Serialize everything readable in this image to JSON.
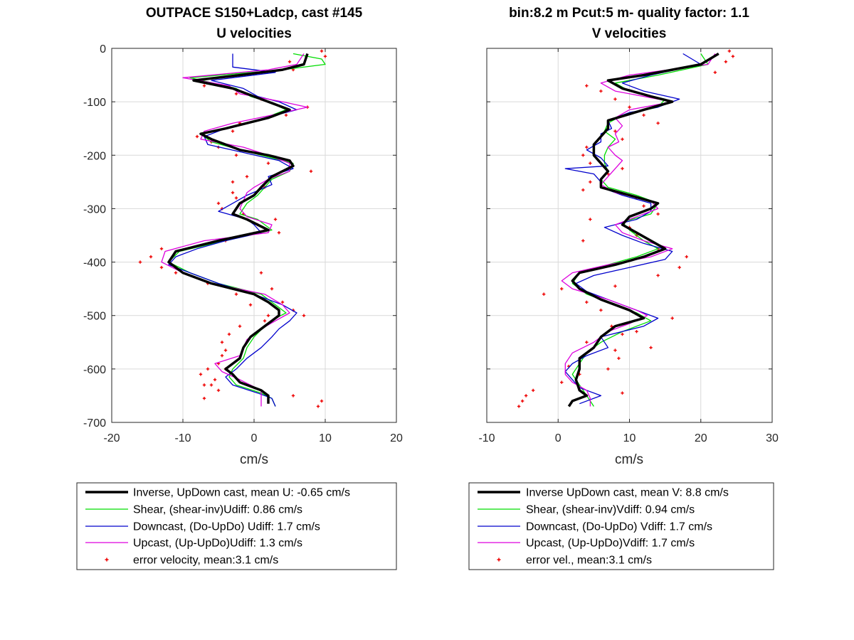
{
  "panels": [
    {
      "id": "u",
      "title_line1": "OUTPACE S150+Ladcp, cast #145",
      "title_line2": "U velocities",
      "xlabel": "cm/s",
      "legend": [
        "Inverse, UpDown cast, mean U:  -0.65 cm/s",
        "Shear, (shear-inv)Udiff:  0.86 cm/s",
        "Downcast, (Do-UpDo) Udiff:  1.7 cm/s",
        "Upcast, (Up-UpDo)Udiff:  1.3 cm/s",
        "error velocity, mean:3.1 cm/s"
      ]
    },
    {
      "id": "v",
      "title_line1": "bin:8.2 m  Pcut:5 m- quality factor:  1.1",
      "title_line2": "V velocities",
      "xlabel": "cm/s",
      "legend": [
        "Inverse UpDown cast, mean V:  8.8 cm/s",
        "Shear, (shear-inv)Vdiff:  0.94 cm/s",
        "Downcast, (Do-UpDo) Vdiff:  1.7 cm/s",
        "Upcast, (Up-UpDo)Vdiff:  1.7 cm/s",
        "error vel., mean:3.1 cm/s"
      ]
    }
  ],
  "colors": {
    "inverse": "#000000",
    "shear": "#00dd00",
    "downcast": "#0000cc",
    "upcast": "#dd00dd",
    "error": "#ee0000",
    "grid": "#d9d9d9"
  },
  "chart_data": [
    {
      "type": "line",
      "x_axis": "velocity",
      "y_axis": "depth",
      "xlim": [
        -20,
        20
      ],
      "xticks": [
        -20,
        -10,
        0,
        10,
        20
      ],
      "ylim": [
        -700,
        0
      ],
      "yticks": [
        0,
        -100,
        -200,
        -300,
        -400,
        -500,
        -600,
        -700
      ],
      "grid": true,
      "legend_position": "below",
      "series": [
        {
          "key": "inverse",
          "depth": [
            -10,
            -30,
            -40,
            -50,
            -60,
            -75,
            -85,
            -100,
            -115,
            -130,
            -150,
            -160,
            -170,
            -190,
            -200,
            -210,
            -220,
            -240,
            -260,
            -275,
            -290,
            -310,
            -320,
            -340,
            -360,
            -380,
            -400,
            -420,
            -440,
            -460,
            -475,
            -490,
            -500,
            -520,
            -540,
            -560,
            -580,
            -600,
            -610,
            -625,
            -640,
            -650,
            -665
          ],
          "values": [
            7.5,
            7.0,
            4.0,
            -2.0,
            -8.5,
            -3.0,
            -1.0,
            2.0,
            5.0,
            2.0,
            -4.0,
            -7.5,
            -6.0,
            -2.0,
            2.0,
            5.0,
            5.5,
            2.5,
            1.0,
            0.0,
            -2.0,
            -3.0,
            -1.0,
            2.0,
            -5.0,
            -11.0,
            -12.0,
            -10.0,
            -6.0,
            0.0,
            2.0,
            3.5,
            3.5,
            1.5,
            -0.5,
            -1.5,
            -2.0,
            -4.0,
            -3.0,
            -2.0,
            1.0,
            2.0,
            2.0
          ]
        },
        {
          "key": "shear",
          "depth": [
            -10,
            -20,
            -30,
            -40,
            -55,
            -75,
            -90,
            -100,
            -115,
            -130,
            -150,
            -160,
            -175,
            -190,
            -205,
            -215,
            -230,
            -245,
            -260,
            -275,
            -290,
            -310,
            -320,
            -340,
            -360,
            -380,
            -400,
            -420,
            -440,
            -460,
            -480,
            -495,
            -505,
            -520,
            -540,
            -560,
            -580,
            -600,
            -615,
            -630,
            -645,
            -655,
            -670
          ],
          "values": [
            5.5,
            9.5,
            10.0,
            4.0,
            -9.0,
            -2.5,
            -0.5,
            2.0,
            4.5,
            1.5,
            -4.0,
            -7.5,
            -6.0,
            -2.0,
            2.5,
            5.5,
            5.0,
            2.5,
            1.5,
            0.5,
            -1.0,
            -2.0,
            0.5,
            2.5,
            -4.0,
            -10.5,
            -12.0,
            -9.0,
            -5.0,
            1.0,
            3.0,
            4.5,
            3.0,
            1.5,
            0.0,
            -1.0,
            -1.5,
            -3.0,
            -3.5,
            -2.5,
            1.0,
            2.5,
            3.0
          ]
        },
        {
          "key": "downcast",
          "depth": [
            -10,
            -35,
            -45,
            -60,
            -75,
            -90,
            -100,
            -115,
            -130,
            -150,
            -165,
            -180,
            -195,
            -210,
            -225,
            -240,
            -255,
            -275,
            -290,
            -305,
            -320,
            -330,
            -345,
            -360,
            -375,
            -390,
            -405,
            -420,
            -440,
            -460,
            -480,
            -495,
            -510,
            -525,
            -540,
            -560,
            -580,
            -600,
            -615,
            -630,
            -645,
            -655,
            -670
          ],
          "values": [
            -3.0,
            -3.0,
            3.0,
            -6.0,
            -1.5,
            0.5,
            3.5,
            6.0,
            1.5,
            -4.0,
            -7.0,
            -6.5,
            -1.5,
            3.5,
            5.5,
            2.0,
            2.5,
            -1.0,
            -3.0,
            -5.0,
            -1.0,
            0.0,
            1.0,
            -4.0,
            -8.0,
            -11.0,
            -12.0,
            -9.0,
            -5.0,
            0.0,
            4.0,
            6.0,
            5.0,
            3.5,
            2.5,
            1.0,
            -1.0,
            -2.5,
            -4.0,
            -3.0,
            0.5,
            2.5,
            3.0
          ]
        },
        {
          "key": "upcast",
          "depth": [
            -10,
            -30,
            -40,
            -55,
            -70,
            -85,
            -100,
            -110,
            -125,
            -140,
            -155,
            -170,
            -185,
            -200,
            -215,
            -230,
            -245,
            -260,
            -270,
            -285,
            -300,
            -315,
            -330,
            -345,
            -360,
            -380,
            -400,
            -420,
            -440,
            -460,
            -480,
            -495,
            -510,
            -525,
            -545,
            -560,
            -575,
            -590,
            -605,
            -620,
            -640,
            -655,
            -670
          ],
          "values": [
            7.0,
            6.0,
            2.0,
            -10.0,
            -3.5,
            -2.0,
            4.0,
            7.5,
            2.5,
            -3.0,
            -7.0,
            -7.5,
            -1.5,
            2.0,
            5.0,
            5.0,
            2.0,
            0.0,
            -1.0,
            -1.5,
            -2.0,
            -1.0,
            2.5,
            2.0,
            -7.0,
            -12.5,
            -13.0,
            -10.0,
            -6.0,
            1.5,
            4.0,
            5.0,
            3.0,
            1.0,
            -1.0,
            -1.5,
            -2.0,
            -5.5,
            -4.5,
            -2.0,
            1.0,
            1.0,
            1.0
          ]
        },
        {
          "key": "error",
          "depth": [
            -5,
            -15,
            -25,
            -40,
            -70,
            -85,
            -95,
            -110,
            -125,
            -140,
            -155,
            -165,
            -175,
            -185,
            -200,
            -215,
            -230,
            -240,
            -250,
            -260,
            -270,
            -280,
            -290,
            -300,
            -310,
            -320,
            -330,
            -345,
            -360,
            -375,
            -390,
            -400,
            -410,
            -420,
            -440,
            -460,
            -480,
            -490,
            -500,
            -510,
            -520,
            -535,
            -550,
            -565,
            -575,
            -590,
            -600,
            -610,
            -620,
            -630,
            -640,
            -650,
            -660,
            -670,
            -500,
            -475,
            -450,
            -420,
            -600,
            -630,
            -655
          ],
          "values": [
            9.5,
            10.0,
            5.0,
            5.5,
            -7.0,
            -2.5,
            1.0,
            7.5,
            4.5,
            -2.0,
            -3.0,
            -8.0,
            -6.0,
            -5.0,
            -2.5,
            2.0,
            8.0,
            -1.0,
            -3.0,
            1.5,
            -3.0,
            -2.5,
            -5.0,
            -4.5,
            -1.5,
            3.0,
            0.5,
            3.5,
            -4.0,
            -13.0,
            -14.5,
            -16.0,
            -13.0,
            -11.0,
            -6.5,
            -2.5,
            -0.5,
            5.5,
            7.0,
            1.5,
            -2.0,
            -3.5,
            -4.5,
            -4.0,
            -4.5,
            -5.0,
            -6.5,
            -7.5,
            -5.5,
            -6.0,
            -5.0,
            5.5,
            9.5,
            9.0,
            2.0,
            4.0,
            2.5,
            1.0,
            -4.0,
            -7.0,
            -7.0
          ]
        }
      ]
    },
    {
      "type": "line",
      "x_axis": "velocity",
      "y_axis": "depth",
      "xlim": [
        -10,
        30
      ],
      "xticks": [
        -10,
        0,
        10,
        20,
        30
      ],
      "ylim": [
        -700,
        0
      ],
      "yticks": [
        0,
        -100,
        -200,
        -300,
        -400,
        -500,
        -600,
        -700
      ],
      "grid": true,
      "legend_position": "below",
      "series": [
        {
          "key": "inverse",
          "depth": [
            -10,
            -30,
            -50,
            -60,
            -75,
            -90,
            -100,
            -115,
            -135,
            -150,
            -165,
            -180,
            -200,
            -215,
            -230,
            -245,
            -260,
            -275,
            -290,
            -300,
            -315,
            -330,
            -345,
            -360,
            -375,
            -390,
            -405,
            -420,
            -435,
            -450,
            -470,
            -490,
            -505,
            -520,
            -540,
            -560,
            -580,
            -600,
            -620,
            -640,
            -650,
            -660,
            -670
          ],
          "values": [
            22.5,
            20.0,
            12.0,
            7.0,
            9.0,
            13.0,
            16.0,
            12.0,
            7.0,
            7.0,
            6.0,
            5.0,
            5.0,
            6.0,
            7.0,
            6.0,
            6.0,
            10.0,
            14.0,
            13.0,
            10.0,
            9.0,
            11.0,
            13.0,
            15.0,
            12.0,
            8.0,
            3.0,
            2.0,
            3.0,
            6.0,
            10.0,
            12.0,
            8.0,
            6.0,
            5.0,
            3.0,
            3.0,
            2.5,
            3.0,
            4.0,
            2.0,
            1.5
          ]
        },
        {
          "key": "shear",
          "depth": [
            -10,
            -30,
            -50,
            -65,
            -80,
            -95,
            -110,
            -125,
            -140,
            -155,
            -170,
            -185,
            -200,
            -215,
            -230,
            -245,
            -260,
            -275,
            -290,
            -310,
            -325,
            -340,
            -360,
            -375,
            -390,
            -405,
            -420,
            -440,
            -460,
            -480,
            -495,
            -510,
            -530,
            -550,
            -570,
            -590,
            -610,
            -630,
            -650,
            -660,
            -670
          ],
          "values": [
            20.0,
            21.0,
            14.0,
            8.0,
            10.0,
            15.0,
            14.0,
            9.0,
            7.0,
            6.5,
            8.0,
            7.0,
            6.5,
            6.5,
            7.0,
            6.0,
            7.0,
            11.0,
            14.0,
            13.0,
            9.0,
            10.0,
            12.0,
            14.0,
            11.0,
            7.0,
            3.0,
            2.0,
            4.0,
            8.0,
            11.0,
            13.0,
            9.0,
            6.0,
            4.0,
            3.0,
            2.0,
            3.0,
            4.0,
            4.5,
            5.0
          ]
        },
        {
          "key": "downcast",
          "depth": [
            -10,
            -30,
            -50,
            -65,
            -80,
            -95,
            -110,
            -120,
            -135,
            -150,
            -160,
            -175,
            -190,
            -205,
            -220,
            -225,
            -235,
            -250,
            -260,
            -275,
            -290,
            -305,
            -320,
            -335,
            -350,
            -365,
            -380,
            -395,
            -410,
            -425,
            -440,
            -455,
            -470,
            -490,
            -505,
            -520,
            -540,
            -560,
            -575,
            -590,
            -605,
            -620,
            -635,
            -650,
            -665
          ],
          "values": [
            17.5,
            20.0,
            13.0,
            9.0,
            12.0,
            17.0,
            14.0,
            10.0,
            7.0,
            7.5,
            6.0,
            6.0,
            4.0,
            6.0,
            7.0,
            1.0,
            5.0,
            6.0,
            6.0,
            9.0,
            13.0,
            13.0,
            11.0,
            6.5,
            9.0,
            12.0,
            16.0,
            15.0,
            10.0,
            5.0,
            2.5,
            4.0,
            7.0,
            11.0,
            14.0,
            12.0,
            6.0,
            7.0,
            4.0,
            2.0,
            1.0,
            2.0,
            3.0,
            6.0,
            3.0
          ]
        },
        {
          "key": "upcast",
          "depth": [
            -10,
            -30,
            -50,
            -65,
            -80,
            -90,
            -100,
            -115,
            -130,
            -145,
            -160,
            -175,
            -185,
            -200,
            -210,
            -225,
            -240,
            -255,
            -270,
            -285,
            -300,
            -315,
            -330,
            -345,
            -360,
            -375,
            -390,
            -405,
            -420,
            -435,
            -450,
            -470,
            -490,
            -500,
            -515,
            -530,
            -550,
            -570,
            -590,
            -610,
            -625,
            -640,
            -655,
            -670
          ],
          "values": [
            22.0,
            21.0,
            10.0,
            6.0,
            8.0,
            12.0,
            16.0,
            10.0,
            8.0,
            9.0,
            8.0,
            8.5,
            7.0,
            8.0,
            9.0,
            8.0,
            7.0,
            6.0,
            8.0,
            13.0,
            14.0,
            11.0,
            8.0,
            9.0,
            12.0,
            16.0,
            13.0,
            7.0,
            2.0,
            0.5,
            2.0,
            7.0,
            11.0,
            12.5,
            10.0,
            7.0,
            5.0,
            2.0,
            1.0,
            1.0,
            2.0,
            4.0,
            4.5,
            4.5
          ]
        },
        {
          "key": "error",
          "depth": [
            -5,
            -15,
            -25,
            -45,
            -70,
            -80,
            -95,
            -110,
            -125,
            -140,
            -155,
            -170,
            -185,
            -200,
            -215,
            -225,
            -235,
            -250,
            -265,
            -280,
            -295,
            -310,
            -320,
            -335,
            -350,
            -360,
            -375,
            -390,
            -410,
            -425,
            -445,
            -460,
            -475,
            -490,
            -505,
            -520,
            -535,
            -550,
            -565,
            -580,
            -595,
            -610,
            -625,
            -640,
            -650,
            -660,
            -670,
            -450,
            -460,
            -530,
            -560,
            -600,
            -645
          ],
          "values": [
            24.0,
            24.5,
            23.5,
            22.0,
            4.0,
            6.0,
            8.0,
            10.0,
            12.0,
            14.0,
            8.0,
            9.0,
            4.0,
            3.5,
            4.5,
            9.0,
            7.0,
            4.5,
            3.5,
            11.0,
            12.0,
            14.0,
            4.5,
            10.0,
            11.0,
            3.5,
            14.0,
            18.0,
            17.0,
            14.0,
            8.0,
            4.5,
            4.0,
            6.0,
            16.0,
            7.5,
            9.0,
            4.0,
            8.0,
            8.5,
            1.5,
            3.0,
            0.5,
            -3.5,
            -4.5,
            -5.0,
            -5.5,
            0.5,
            -2.0,
            11.0,
            13.0,
            7.0,
            9.0
          ]
        }
      ]
    }
  ]
}
